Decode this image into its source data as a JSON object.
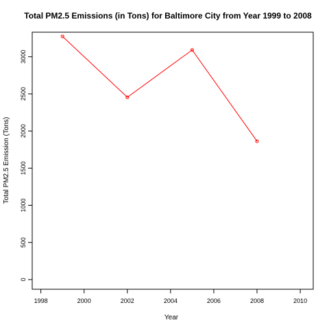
{
  "chart_data": {
    "type": "line",
    "title": "Total PM2.5 Emissions (in Tons) for Baltimore City from Year 1999 to 2008",
    "xlabel": "Year",
    "ylabel": "Total PM2.5 Emission (Tons)",
    "x": [
      1999,
      2002,
      2005,
      2008
    ],
    "series": [
      {
        "values": [
          3274,
          2454,
          3091,
          1862
        ]
      }
    ],
    "xlim": [
      1997.6,
      2010.6
    ],
    "ylim": [
      -130,
      3330
    ],
    "xticks": [
      1998,
      2000,
      2002,
      2004,
      2006,
      2008,
      2010
    ],
    "yticks": [
      0,
      500,
      1000,
      1500,
      2000,
      2500,
      3000
    ],
    "grid": false,
    "series_color": "#ff0000"
  }
}
